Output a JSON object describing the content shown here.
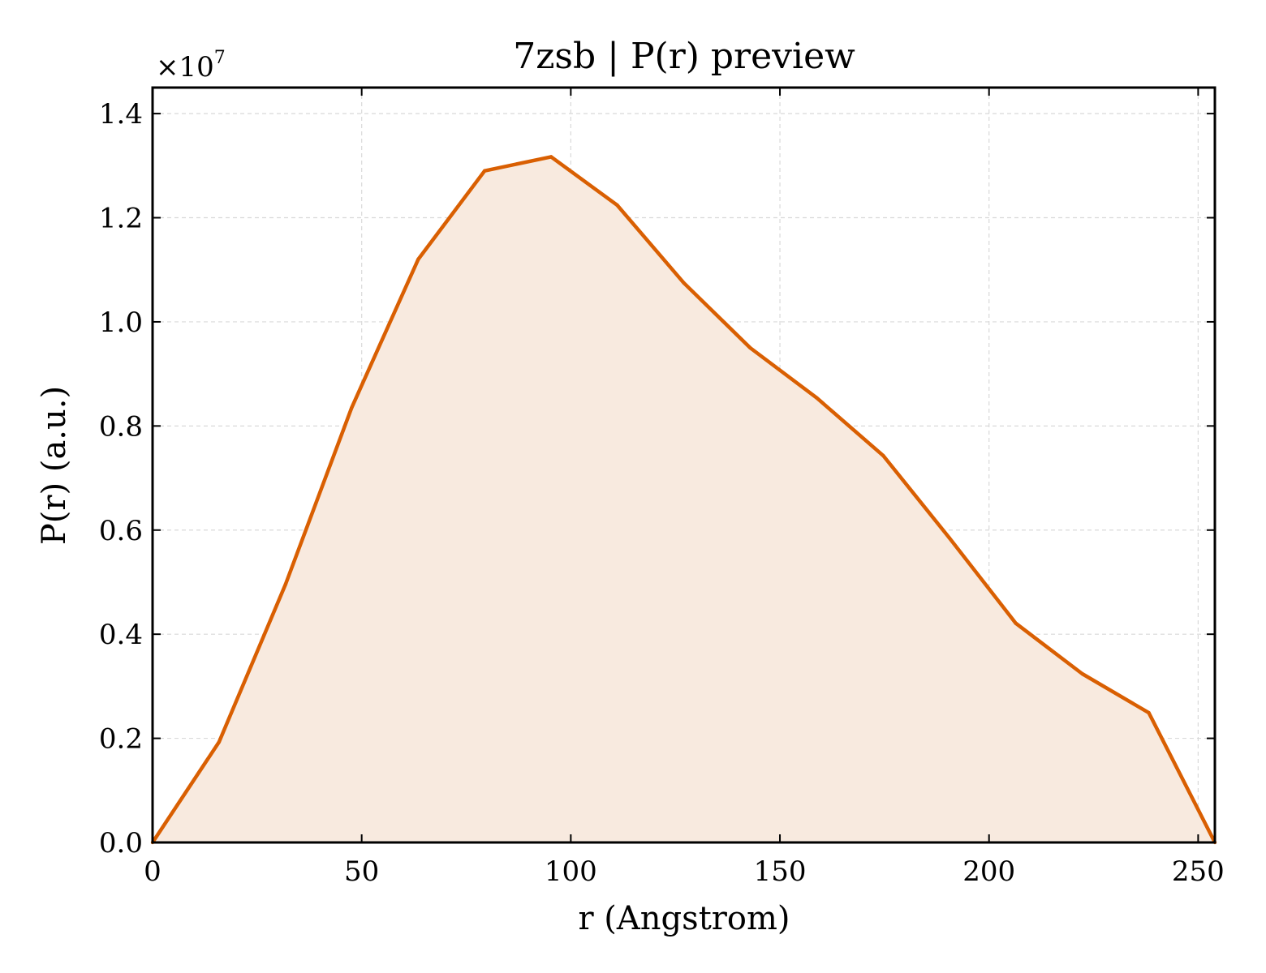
{
  "chart_data": {
    "type": "area",
    "title": "7zsb | P(r) preview",
    "xlabel": "r (Angstrom)",
    "ylabel": "P(r) (a.u.)",
    "y_multiplier_base": "×10",
    "y_multiplier_exp": "7",
    "xlim": [
      0,
      254
    ],
    "ylim": [
      0,
      1.45
    ],
    "x_ticks": [
      0,
      50,
      100,
      150,
      200,
      250
    ],
    "x_tick_labels": [
      "0",
      "50",
      "100",
      "150",
      "200",
      "250"
    ],
    "y_ticks": [
      0.0,
      0.2,
      0.4,
      0.6,
      0.8,
      1.0,
      1.2,
      1.4
    ],
    "y_tick_labels": [
      "0.0",
      "0.2",
      "0.4",
      "0.6",
      "0.8",
      "1.0",
      "1.2",
      "1.4"
    ],
    "grid": true,
    "x": [
      0,
      15.9,
      31.8,
      47.6,
      63.5,
      79.4,
      95.3,
      111.1,
      127.0,
      142.9,
      158.8,
      174.7,
      190.5,
      206.4,
      222.3,
      238.2,
      254.0
    ],
    "y": [
      0.0,
      0.193,
      0.496,
      0.835,
      1.12,
      1.29,
      1.317,
      1.224,
      1.075,
      0.95,
      0.854,
      0.743,
      0.585,
      0.421,
      0.324,
      0.249,
      0.0
    ],
    "line_color": "#d95f02",
    "fill_color": "#f8eadf",
    "grid_color": "#d9d9d9"
  }
}
